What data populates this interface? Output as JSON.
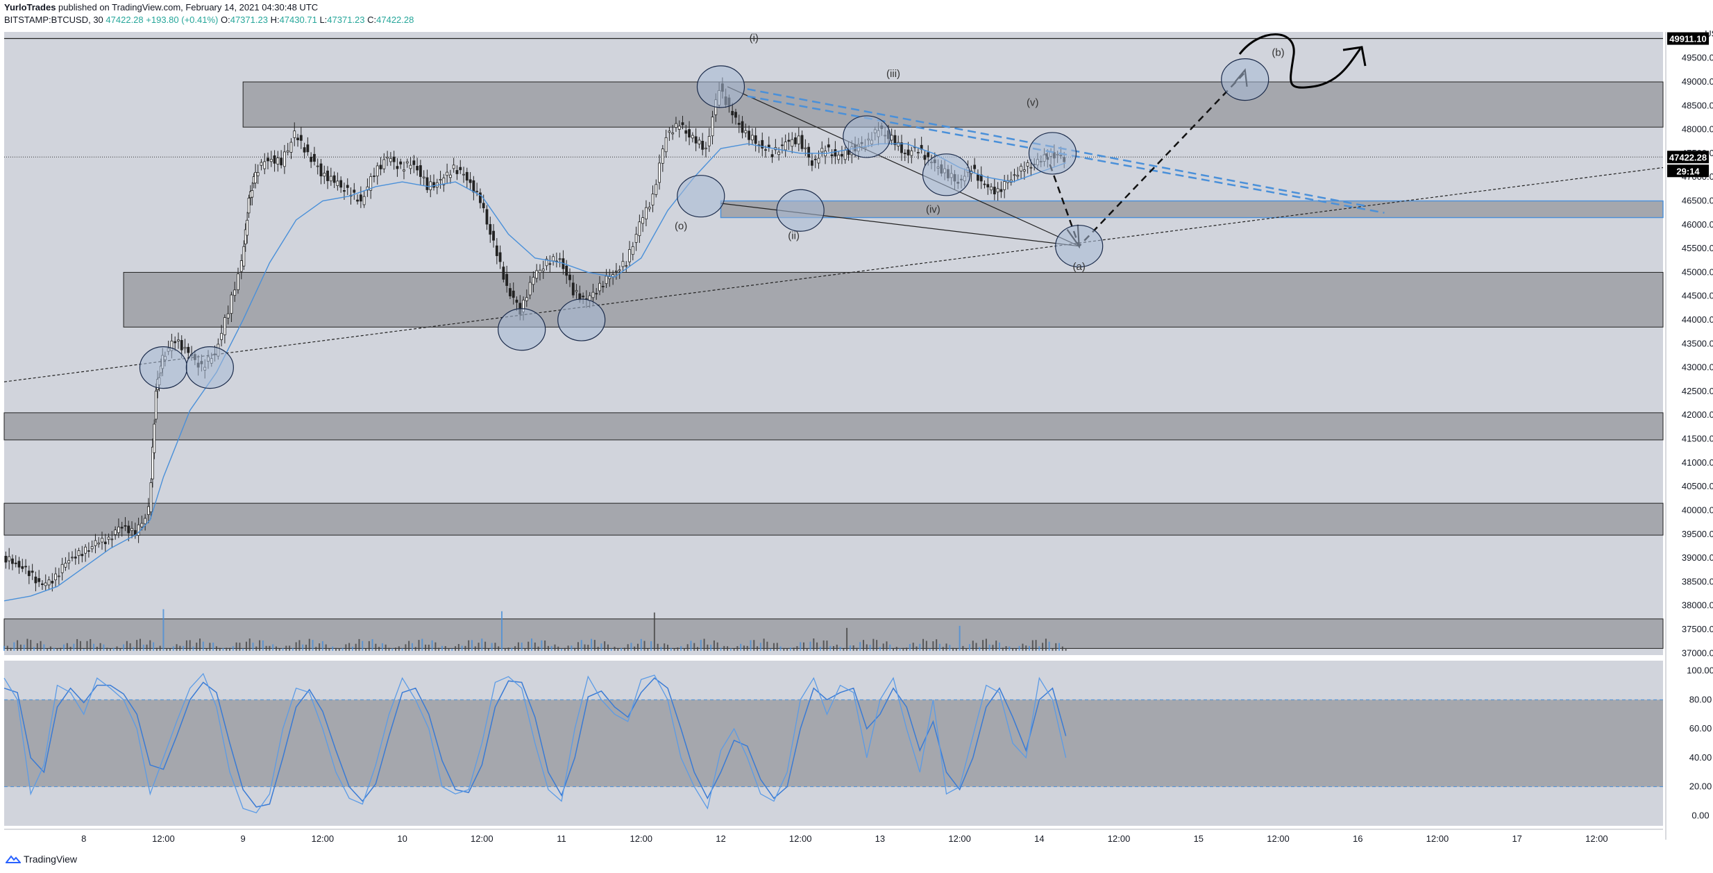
{
  "header": {
    "author": "YurloTrades",
    "published": "published on TradingView.com, February 14, 2021 04:30:48 UTC",
    "symbol": "BITSTAMP:BTCUSD, 30",
    "last": "47422.28",
    "change": "+193.80 (+0.41%)",
    "o_label": "O:",
    "o_value": "47371.23",
    "h_label": "H:",
    "h_value": "47430.71",
    "l_label": "L:",
    "l_value": "47371.23",
    "c_label": "C:",
    "c_value": "47422.28"
  },
  "footer": {
    "brand": "TradingView"
  },
  "colors": {
    "background": "#d1d4dc",
    "zone": "#a5a7ad",
    "candle": "#222222",
    "accent_blue": "#4a90d9",
    "circle_fill": "#a8bad6"
  },
  "chart_data": {
    "type": "candlestick",
    "symbol": "BITSTAMP:BTCUSD",
    "interval": "30",
    "currency_label": "USD",
    "last_price_label": "47422.28",
    "countdown_label": "29:14",
    "top_price_label": "49911.10",
    "price_ylim": [
      36960,
      50050
    ],
    "price_ticks": [
      "49500.00",
      "49000.00",
      "48500.00",
      "48000.00",
      "47500.00",
      "47000.00",
      "46500.00",
      "46000.00",
      "45500.00",
      "45000.00",
      "44500.00",
      "44000.00",
      "43500.00",
      "43000.00",
      "42500.00",
      "42000.00",
      "41500.00",
      "41000.00",
      "40500.00",
      "40000.00",
      "39500.00",
      "39000.00",
      "38500.00",
      "38000.00",
      "37500.00",
      "37000.00"
    ],
    "oscillator_ylim": [
      -7,
      107
    ],
    "oscillator_ticks": [
      "100.00",
      "80.00",
      "60.00",
      "40.00",
      "20.00",
      "0.00"
    ],
    "x_range_hours": [
      -12,
      238
    ],
    "x_ticks": [
      {
        "label": "8",
        "hour": 0
      },
      {
        "label": "12:00",
        "hour": 12
      },
      {
        "label": "9",
        "hour": 24
      },
      {
        "label": "12:00",
        "hour": 36
      },
      {
        "label": "10",
        "hour": 48
      },
      {
        "label": "12:00",
        "hour": 60
      },
      {
        "label": "11",
        "hour": 72
      },
      {
        "label": "12:00",
        "hour": 84
      },
      {
        "label": "12",
        "hour": 96
      },
      {
        "label": "12:00",
        "hour": 108
      },
      {
        "label": "13",
        "hour": 120
      },
      {
        "label": "12:00",
        "hour": 132
      },
      {
        "label": "14",
        "hour": 144
      },
      {
        "label": "12:00",
        "hour": 156
      },
      {
        "label": "15",
        "hour": 168
      },
      {
        "label": "12:00",
        "hour": 180
      },
      {
        "label": "16",
        "hour": 192
      },
      {
        "label": "12:00",
        "hour": 204
      },
      {
        "label": "17",
        "hour": 216
      },
      {
        "label": "12:00",
        "hour": 228
      }
    ],
    "price_path": [
      [
        -12,
        39000
      ],
      [
        -10,
        38900
      ],
      [
        -8,
        38700
      ],
      [
        -6,
        38400
      ],
      [
        -4,
        38600
      ],
      [
        -2,
        39000
      ],
      [
        0,
        39100
      ],
      [
        2,
        39300
      ],
      [
        4,
        39400
      ],
      [
        6,
        39700
      ],
      [
        8,
        39500
      ],
      [
        10,
        40000
      ],
      [
        11,
        42500
      ],
      [
        12,
        43200
      ],
      [
        14,
        43600
      ],
      [
        16,
        43300
      ],
      [
        18,
        43000
      ],
      [
        20,
        43300
      ],
      [
        22,
        44200
      ],
      [
        24,
        45200
      ],
      [
        25,
        46500
      ],
      [
        26,
        47100
      ],
      [
        28,
        47400
      ],
      [
        30,
        47300
      ],
      [
        32,
        47900
      ],
      [
        34,
        47500
      ],
      [
        36,
        47100
      ],
      [
        38,
        46900
      ],
      [
        40,
        46700
      ],
      [
        42,
        46500
      ],
      [
        44,
        47100
      ],
      [
        46,
        47400
      ],
      [
        48,
        47200
      ],
      [
        50,
        47300
      ],
      [
        52,
        46800
      ],
      [
        54,
        46900
      ],
      [
        56,
        47200
      ],
      [
        58,
        47000
      ],
      [
        60,
        46500
      ],
      [
        62,
        45600
      ],
      [
        64,
        44700
      ],
      [
        66,
        44200
      ],
      [
        68,
        44900
      ],
      [
        70,
        45200
      ],
      [
        72,
        45300
      ],
      [
        74,
        44600
      ],
      [
        76,
        44400
      ],
      [
        78,
        44700
      ],
      [
        80,
        45000
      ],
      [
        82,
        45200
      ],
      [
        84,
        46000
      ],
      [
        86,
        46600
      ],
      [
        88,
        47900
      ],
      [
        90,
        48100
      ],
      [
        92,
        47800
      ],
      [
        94,
        47600
      ],
      [
        96,
        48900
      ],
      [
        98,
        48300
      ],
      [
        100,
        47900
      ],
      [
        102,
        47700
      ],
      [
        104,
        47500
      ],
      [
        106,
        47700
      ],
      [
        108,
        47800
      ],
      [
        110,
        47300
      ],
      [
        112,
        47600
      ],
      [
        114,
        47400
      ],
      [
        116,
        47600
      ],
      [
        118,
        47700
      ],
      [
        120,
        48000
      ],
      [
        122,
        47800
      ],
      [
        124,
        47500
      ],
      [
        126,
        47600
      ],
      [
        128,
        47300
      ],
      [
        130,
        47100
      ],
      [
        132,
        46900
      ],
      [
        134,
        47200
      ],
      [
        136,
        46800
      ],
      [
        138,
        46700
      ],
      [
        140,
        47000
      ],
      [
        142,
        47200
      ],
      [
        144,
        47300
      ],
      [
        146,
        47500
      ],
      [
        148,
        47400
      ]
    ],
    "ema_path": [
      [
        -12,
        38100
      ],
      [
        -8,
        38200
      ],
      [
        -4,
        38400
      ],
      [
        0,
        38800
      ],
      [
        4,
        39200
      ],
      [
        8,
        39500
      ],
      [
        10,
        39800
      ],
      [
        12,
        40700
      ],
      [
        16,
        42100
      ],
      [
        20,
        42900
      ],
      [
        24,
        44000
      ],
      [
        28,
        45200
      ],
      [
        32,
        46100
      ],
      [
        36,
        46500
      ],
      [
        40,
        46600
      ],
      [
        44,
        46800
      ],
      [
        48,
        46900
      ],
      [
        52,
        46800
      ],
      [
        56,
        46900
      ],
      [
        60,
        46600
      ],
      [
        64,
        45800
      ],
      [
        68,
        45300
      ],
      [
        72,
        45200
      ],
      [
        76,
        45000
      ],
      [
        80,
        44900
      ],
      [
        84,
        45300
      ],
      [
        88,
        46300
      ],
      [
        92,
        47000
      ],
      [
        96,
        47600
      ],
      [
        100,
        47700
      ],
      [
        104,
        47600
      ],
      [
        108,
        47500
      ],
      [
        112,
        47500
      ],
      [
        116,
        47600
      ],
      [
        120,
        47700
      ],
      [
        124,
        47700
      ],
      [
        128,
        47500
      ],
      [
        132,
        47200
      ],
      [
        136,
        47000
      ],
      [
        140,
        46900
      ],
      [
        144,
        47100
      ],
      [
        148,
        47300
      ]
    ],
    "volume_spikes": [
      {
        "hour": 12,
        "height": 1
      },
      {
        "hour": 63,
        "height": 0.95
      },
      {
        "hour": 86,
        "height": 0.92
      },
      {
        "hour": 115,
        "height": 0.55
      },
      {
        "hour": 132,
        "height": 0.6
      }
    ],
    "stoch_k": [
      [
        -12,
        95
      ],
      [
        -10,
        80
      ],
      [
        -8,
        15
      ],
      [
        -6,
        35
      ],
      [
        -4,
        90
      ],
      [
        -2,
        85
      ],
      [
        0,
        70
      ],
      [
        2,
        95
      ],
      [
        4,
        88
      ],
      [
        6,
        80
      ],
      [
        8,
        60
      ],
      [
        10,
        15
      ],
      [
        12,
        40
      ],
      [
        14,
        65
      ],
      [
        16,
        88
      ],
      [
        18,
        98
      ],
      [
        20,
        75
      ],
      [
        22,
        30
      ],
      [
        24,
        5
      ],
      [
        26,
        2
      ],
      [
        28,
        15
      ],
      [
        30,
        60
      ],
      [
        32,
        88
      ],
      [
        34,
        85
      ],
      [
        36,
        60
      ],
      [
        38,
        30
      ],
      [
        40,
        12
      ],
      [
        42,
        8
      ],
      [
        44,
        35
      ],
      [
        46,
        70
      ],
      [
        48,
        95
      ],
      [
        50,
        80
      ],
      [
        52,
        60
      ],
      [
        54,
        20
      ],
      [
        56,
        15
      ],
      [
        58,
        18
      ],
      [
        60,
        50
      ],
      [
        62,
        92
      ],
      [
        64,
        96
      ],
      [
        66,
        88
      ],
      [
        68,
        50
      ],
      [
        70,
        18
      ],
      [
        72,
        10
      ],
      [
        74,
        60
      ],
      [
        76,
        96
      ],
      [
        78,
        80
      ],
      [
        80,
        70
      ],
      [
        82,
        65
      ],
      [
        84,
        94
      ],
      [
        86,
        97
      ],
      [
        88,
        80
      ],
      [
        90,
        40
      ],
      [
        92,
        20
      ],
      [
        94,
        5
      ],
      [
        96,
        45
      ],
      [
        98,
        60
      ],
      [
        100,
        40
      ],
      [
        102,
        15
      ],
      [
        104,
        10
      ],
      [
        106,
        30
      ],
      [
        108,
        80
      ],
      [
        110,
        95
      ],
      [
        112,
        70
      ],
      [
        114,
        90
      ],
      [
        116,
        85
      ],
      [
        118,
        40
      ],
      [
        120,
        80
      ],
      [
        122,
        95
      ],
      [
        124,
        60
      ],
      [
        126,
        30
      ],
      [
        128,
        80
      ],
      [
        130,
        15
      ],
      [
        132,
        20
      ],
      [
        134,
        55
      ],
      [
        136,
        90
      ],
      [
        138,
        85
      ],
      [
        140,
        50
      ],
      [
        142,
        40
      ],
      [
        144,
        95
      ],
      [
        146,
        80
      ],
      [
        148,
        40
      ]
    ],
    "stoch_d": [
      [
        -12,
        88
      ],
      [
        -10,
        85
      ],
      [
        -8,
        40
      ],
      [
        -6,
        30
      ],
      [
        -4,
        75
      ],
      [
        -2,
        88
      ],
      [
        0,
        78
      ],
      [
        2,
        90
      ],
      [
        4,
        90
      ],
      [
        6,
        84
      ],
      [
        8,
        70
      ],
      [
        10,
        35
      ],
      [
        12,
        32
      ],
      [
        14,
        55
      ],
      [
        16,
        80
      ],
      [
        18,
        92
      ],
      [
        20,
        85
      ],
      [
        22,
        50
      ],
      [
        24,
        18
      ],
      [
        26,
        6
      ],
      [
        28,
        8
      ],
      [
        30,
        40
      ],
      [
        32,
        75
      ],
      [
        34,
        87
      ],
      [
        36,
        72
      ],
      [
        38,
        45
      ],
      [
        40,
        20
      ],
      [
        42,
        10
      ],
      [
        44,
        22
      ],
      [
        46,
        55
      ],
      [
        48,
        85
      ],
      [
        50,
        88
      ],
      [
        52,
        70
      ],
      [
        54,
        38
      ],
      [
        56,
        18
      ],
      [
        58,
        16
      ],
      [
        60,
        35
      ],
      [
        62,
        75
      ],
      [
        64,
        93
      ],
      [
        66,
        92
      ],
      [
        68,
        68
      ],
      [
        70,
        30
      ],
      [
        72,
        14
      ],
      [
        74,
        40
      ],
      [
        76,
        82
      ],
      [
        78,
        86
      ],
      [
        80,
        75
      ],
      [
        82,
        68
      ],
      [
        84,
        85
      ],
      [
        86,
        95
      ],
      [
        88,
        88
      ],
      [
        90,
        60
      ],
      [
        92,
        30
      ],
      [
        94,
        12
      ],
      [
        96,
        30
      ],
      [
        98,
        52
      ],
      [
        100,
        48
      ],
      [
        102,
        25
      ],
      [
        104,
        12
      ],
      [
        106,
        20
      ],
      [
        108,
        60
      ],
      [
        110,
        88
      ],
      [
        112,
        80
      ],
      [
        114,
        85
      ],
      [
        116,
        88
      ],
      [
        118,
        60
      ],
      [
        120,
        70
      ],
      [
        122,
        88
      ],
      [
        124,
        75
      ],
      [
        126,
        45
      ],
      [
        128,
        65
      ],
      [
        130,
        30
      ],
      [
        132,
        18
      ],
      [
        134,
        40
      ],
      [
        136,
        75
      ],
      [
        138,
        88
      ],
      [
        140,
        68
      ],
      [
        142,
        45
      ],
      [
        144,
        80
      ],
      [
        146,
        88
      ],
      [
        148,
        55
      ]
    ]
  },
  "annotations": [
    {
      "text": "(i)",
      "hour": 101,
      "price": 49850
    },
    {
      "text": "(iii)",
      "hour": 122,
      "price": 49100
    },
    {
      "text": "(v)",
      "hour": 143,
      "price": 48500
    },
    {
      "text": "(o)",
      "hour": 90,
      "price": 45900
    },
    {
      "text": "(ii)",
      "hour": 107,
      "price": 45700
    },
    {
      "text": "(iv)",
      "hour": 128,
      "price": 46250
    },
    {
      "text": "(a)",
      "hour": 150,
      "price": 45050
    },
    {
      "text": "(b)",
      "hour": 180,
      "price": 49550
    }
  ],
  "levels": [
    {
      "name": "zone-47000-45000",
      "top": 49000,
      "bottom": 48050,
      "start_hour": 24
    },
    {
      "name": "zone-45000",
      "top": 45000,
      "bottom": 43850,
      "start_hour": 6
    },
    {
      "name": "zone-42000",
      "top": 42050,
      "bottom": 41480,
      "start_hour": -12
    },
    {
      "name": "zone-40000",
      "top": 40150,
      "bottom": 39480,
      "start_hour": -12
    },
    {
      "name": "zone-37700",
      "top": 37720,
      "bottom": 37100,
      "start_hour": -12
    }
  ]
}
